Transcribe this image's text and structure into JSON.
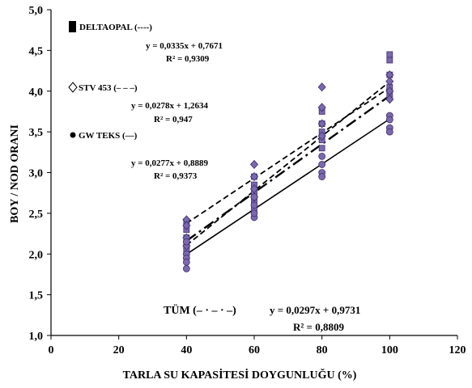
{
  "chart_data": {
    "type": "scatter",
    "xlabel": "TARLA SU KAPASİTESİ DOYGUNLUĞU (%)",
    "ylabel": "BOY / NOD ORANI",
    "xlim": [
      0,
      120
    ],
    "ylim": [
      1.0,
      5.0
    ],
    "x_ticks": [
      0,
      20,
      40,
      60,
      80,
      100,
      120
    ],
    "y_ticks": [
      1.0,
      1.5,
      2.0,
      2.5,
      3.0,
      3.5,
      4.0,
      4.5,
      5.0
    ],
    "x_tick_labels": [
      "0",
      "20",
      "40",
      "60",
      "80",
      "100",
      "120"
    ],
    "y_tick_labels": [
      "1,0",
      "1,5",
      "2,0",
      "2,5",
      "3,0",
      "3,5",
      "4,0",
      "4,5",
      "5,0"
    ],
    "grid": false,
    "legend_position": "left",
    "series": [
      {
        "name": "DELTAOPAL (----)",
        "marker": "square",
        "color": "#7b68ae",
        "line_style": "dashed",
        "equation": "y = 0,0335x + 0,7671",
        "r2": "R² = 0,9309",
        "slope": 0.0335,
        "intercept": 0.7671,
        "x": [
          40,
          40,
          40,
          40,
          40,
          60,
          60,
          60,
          60,
          60,
          80,
          80,
          80,
          80,
          80,
          100,
          100,
          100,
          100,
          100
        ],
        "y": [
          2.4,
          2.3,
          2.2,
          2.1,
          2.05,
          2.95,
          2.85,
          2.75,
          2.65,
          2.55,
          3.75,
          3.6,
          3.5,
          3.4,
          3.3,
          4.45,
          4.38,
          4.2,
          4.05,
          3.95
        ]
      },
      {
        "name": "STV 453 (– – –)",
        "marker": "diamond",
        "color": "#7b68ae",
        "line_style": "dashed",
        "equation": "y = 0,0278x + 1,2634",
        "r2": "R² = 0,947",
        "slope": 0.0278,
        "intercept": 1.2634,
        "x": [
          40,
          40,
          40,
          40,
          60,
          60,
          60,
          60,
          80,
          80,
          80,
          80,
          100,
          100,
          100,
          100
        ],
        "y": [
          2.42,
          2.35,
          2.2,
          2.1,
          3.1,
          2.95,
          2.8,
          2.7,
          4.05,
          3.8,
          3.6,
          3.45,
          4.2,
          4.12,
          4.0,
          3.9
        ]
      },
      {
        "name": "GW TEKS (—)",
        "marker": "circle",
        "color": "#7b68ae",
        "line_style": "solid",
        "equation": "y = 0,0277x + 0,8889",
        "r2": "R² = 0,9373",
        "slope": 0.0277,
        "intercept": 0.8889,
        "x": [
          40,
          40,
          40,
          40,
          40,
          60,
          60,
          60,
          60,
          80,
          80,
          80,
          80,
          100,
          100,
          100,
          100
        ],
        "y": [
          2.0,
          1.95,
          1.9,
          1.82,
          2.15,
          2.45,
          2.5,
          2.6,
          2.7,
          3.0,
          3.1,
          3.2,
          2.95,
          3.7,
          3.65,
          3.55,
          3.5
        ]
      }
    ],
    "overall": {
      "label": "TÜM (– · – · –)",
      "equation": "y = 0,0297x + 0,9731",
      "r2": "R² = 0,8809",
      "slope": 0.0297,
      "intercept": 0.9731,
      "line_style": "dash-dot"
    }
  }
}
